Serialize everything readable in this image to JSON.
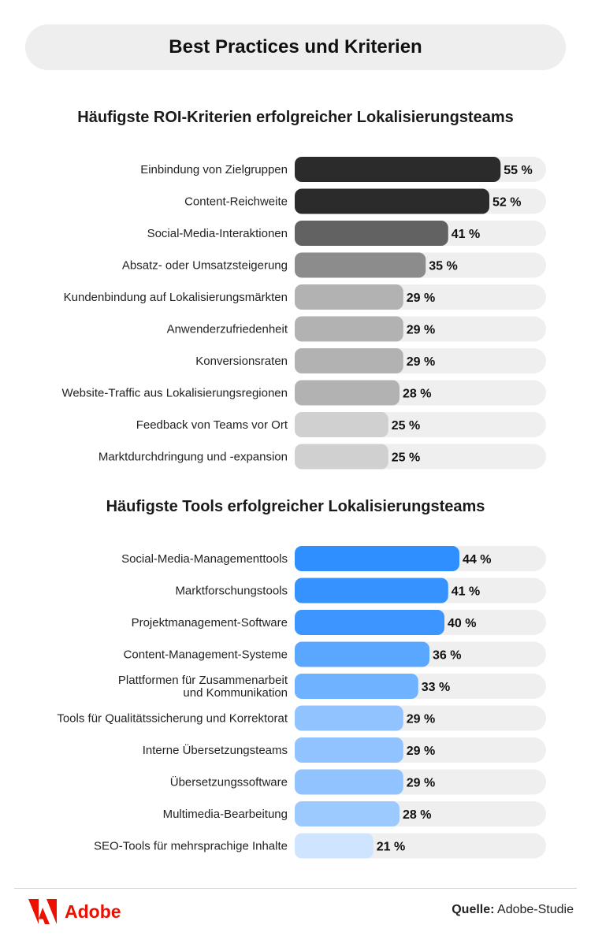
{
  "header": {
    "title": "Best Practices und Kriterien"
  },
  "colors": {
    "track": "#efefef",
    "brand_red": "#eb1000"
  },
  "chart_data": [
    {
      "type": "bar",
      "orientation": "horizontal",
      "title": "Häufigste ROI-Kriterien erfolgreicher Lokalisierungsteams",
      "xlim": [
        0,
        100
      ],
      "unit": "%",
      "categories": [
        [
          "Einbindung von Zielgruppen"
        ],
        [
          "Content-Reichweite"
        ],
        [
          "Social-Media-Interaktionen"
        ],
        [
          "Absatz- oder Umsatzsteigerung"
        ],
        [
          "Kundenbindung auf Lokalisierungsmärkten"
        ],
        [
          "Anwenderzufriedenheit"
        ],
        [
          "Konversionsraten"
        ],
        [
          "Website-Traffic aus Lokalisierungsregionen"
        ],
        [
          "Feedback von Teams vor Ort"
        ],
        [
          "Marktdurchdringung und -expansion"
        ]
      ],
      "values": [
        55,
        52,
        41,
        35,
        29,
        29,
        29,
        28,
        25,
        25
      ],
      "value_labels": [
        "55 %",
        "52 %",
        "41 %",
        "35 %",
        "29 %",
        "29 %",
        "29 %",
        "28 %",
        "25 %",
        "25 %"
      ],
      "bar_colors": [
        "#2b2b2b",
        "#2b2b2b",
        "#626262",
        "#8c8c8c",
        "#b2b2b2",
        "#b2b2b2",
        "#b2b2b2",
        "#b2b2b2",
        "#d0d0d0",
        "#d0d0d0"
      ]
    },
    {
      "type": "bar",
      "orientation": "horizontal",
      "title": "Häufigste Tools erfolgreicher Lokalisierungsteams",
      "xlim": [
        0,
        100
      ],
      "unit": "%",
      "categories": [
        [
          "Social-Media-Managementtools"
        ],
        [
          "Marktforschungstools"
        ],
        [
          "Projektmanagement-Software"
        ],
        [
          "Content-Management-Systeme"
        ],
        [
          "Plattformen für Zusammenarbeit",
          "und Kommunikation"
        ],
        [
          "Tools für Qualitätssicherung und Korrektorat"
        ],
        [
          "Interne Übersetzungsteams"
        ],
        [
          "Übersetzungssoftware"
        ],
        [
          "Multimedia-Bearbeitung"
        ],
        [
          "SEO-Tools für mehrsprachige Inhalte"
        ]
      ],
      "values": [
        44,
        41,
        40,
        36,
        33,
        29,
        29,
        29,
        28,
        21
      ],
      "value_labels": [
        "44 %",
        "41 %",
        "40 %",
        "36 %",
        "33 %",
        "29 %",
        "29 %",
        "29 %",
        "28 %",
        "21 %"
      ],
      "bar_colors": [
        "#2f8fff",
        "#3692ff",
        "#3d96ff",
        "#5aa7ff",
        "#6fb2ff",
        "#90c3ff",
        "#90c3ff",
        "#90c3ff",
        "#9ccaff",
        "#cfe4ff"
      ]
    }
  ],
  "footer": {
    "brand": "Adobe",
    "source_label": "Quelle:",
    "source_value": "Adobe-Studie"
  }
}
